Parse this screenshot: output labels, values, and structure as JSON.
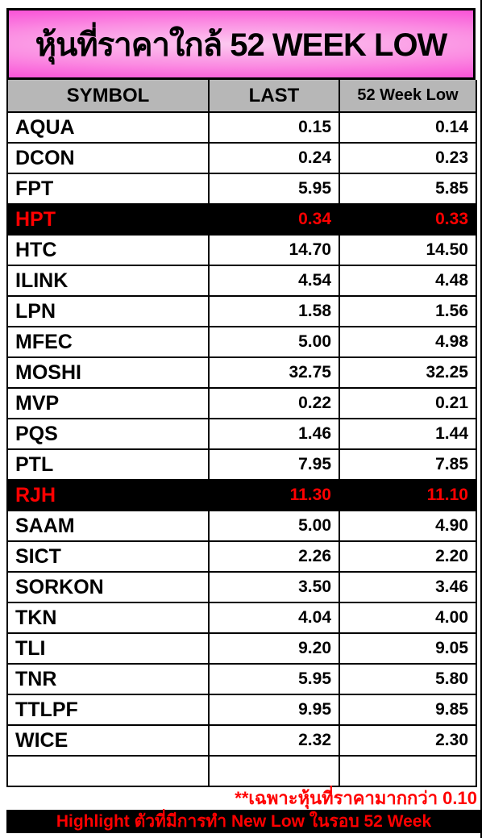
{
  "chart_data": {
    "type": "table",
    "title": "หุ้นที่ราคาใกล้ 52 WEEK LOW",
    "columns": [
      "SYMBOL",
      "LAST",
      "52 Week Low"
    ],
    "rows": [
      {
        "symbol": "AQUA",
        "last": "0.15",
        "low": "0.14",
        "highlight": false
      },
      {
        "symbol": "DCON",
        "last": "0.24",
        "low": "0.23",
        "highlight": false
      },
      {
        "symbol": "FPT",
        "last": "5.95",
        "low": "5.85",
        "highlight": false
      },
      {
        "symbol": "HPT",
        "last": "0.34",
        "low": "0.33",
        "highlight": true
      },
      {
        "symbol": "HTC",
        "last": "14.70",
        "low": "14.50",
        "highlight": false
      },
      {
        "symbol": "ILINK",
        "last": "4.54",
        "low": "4.48",
        "highlight": false
      },
      {
        "symbol": "LPN",
        "last": "1.58",
        "low": "1.56",
        "highlight": false
      },
      {
        "symbol": "MFEC",
        "last": "5.00",
        "low": "4.98",
        "highlight": false
      },
      {
        "symbol": "MOSHI",
        "last": "32.75",
        "low": "32.25",
        "highlight": false
      },
      {
        "symbol": "MVP",
        "last": "0.22",
        "low": "0.21",
        "highlight": false
      },
      {
        "symbol": "PQS",
        "last": "1.46",
        "low": "1.44",
        "highlight": false
      },
      {
        "symbol": "PTL",
        "last": "7.95",
        "low": "7.85",
        "highlight": false
      },
      {
        "symbol": "RJH",
        "last": "11.30",
        "low": "11.10",
        "highlight": true
      },
      {
        "symbol": "SAAM",
        "last": "5.00",
        "low": "4.90",
        "highlight": false
      },
      {
        "symbol": "SICT",
        "last": "2.26",
        "low": "2.20",
        "highlight": false
      },
      {
        "symbol": "SORKON",
        "last": "3.50",
        "low": "3.46",
        "highlight": false
      },
      {
        "symbol": "TKN",
        "last": "4.04",
        "low": "4.00",
        "highlight": false
      },
      {
        "symbol": "TLI",
        "last": "9.20",
        "low": "9.05",
        "highlight": false
      },
      {
        "symbol": "TNR",
        "last": "5.95",
        "low": "5.80",
        "highlight": false
      },
      {
        "symbol": "TTLPF",
        "last": "9.95",
        "low": "9.85",
        "highlight": false
      },
      {
        "symbol": "WICE",
        "last": "2.32",
        "low": "2.30",
        "highlight": false
      },
      {
        "symbol": "",
        "last": "",
        "low": "",
        "highlight": false
      }
    ],
    "highlighted_symbols": [
      "HPT",
      "RJH"
    ],
    "footnote": "**เฉพาะหุ้นที่ราคามากกว่า 0.10",
    "legend_bar_label": "Highlight ตัวที่มีการทำ New Low ในรอบ 52 Week"
  },
  "colors": {
    "title_gradient_center": "#fccaf0",
    "title_gradient_edge": "#f93bd3",
    "header_bg": "#b7b7b7",
    "border": "#000000",
    "highlight_bg": "#000000",
    "highlight_text": "#ff0000",
    "footnote_text": "#ff0000",
    "legend_bar_bg": "#000000",
    "legend_bar_text": "#ff0000"
  }
}
